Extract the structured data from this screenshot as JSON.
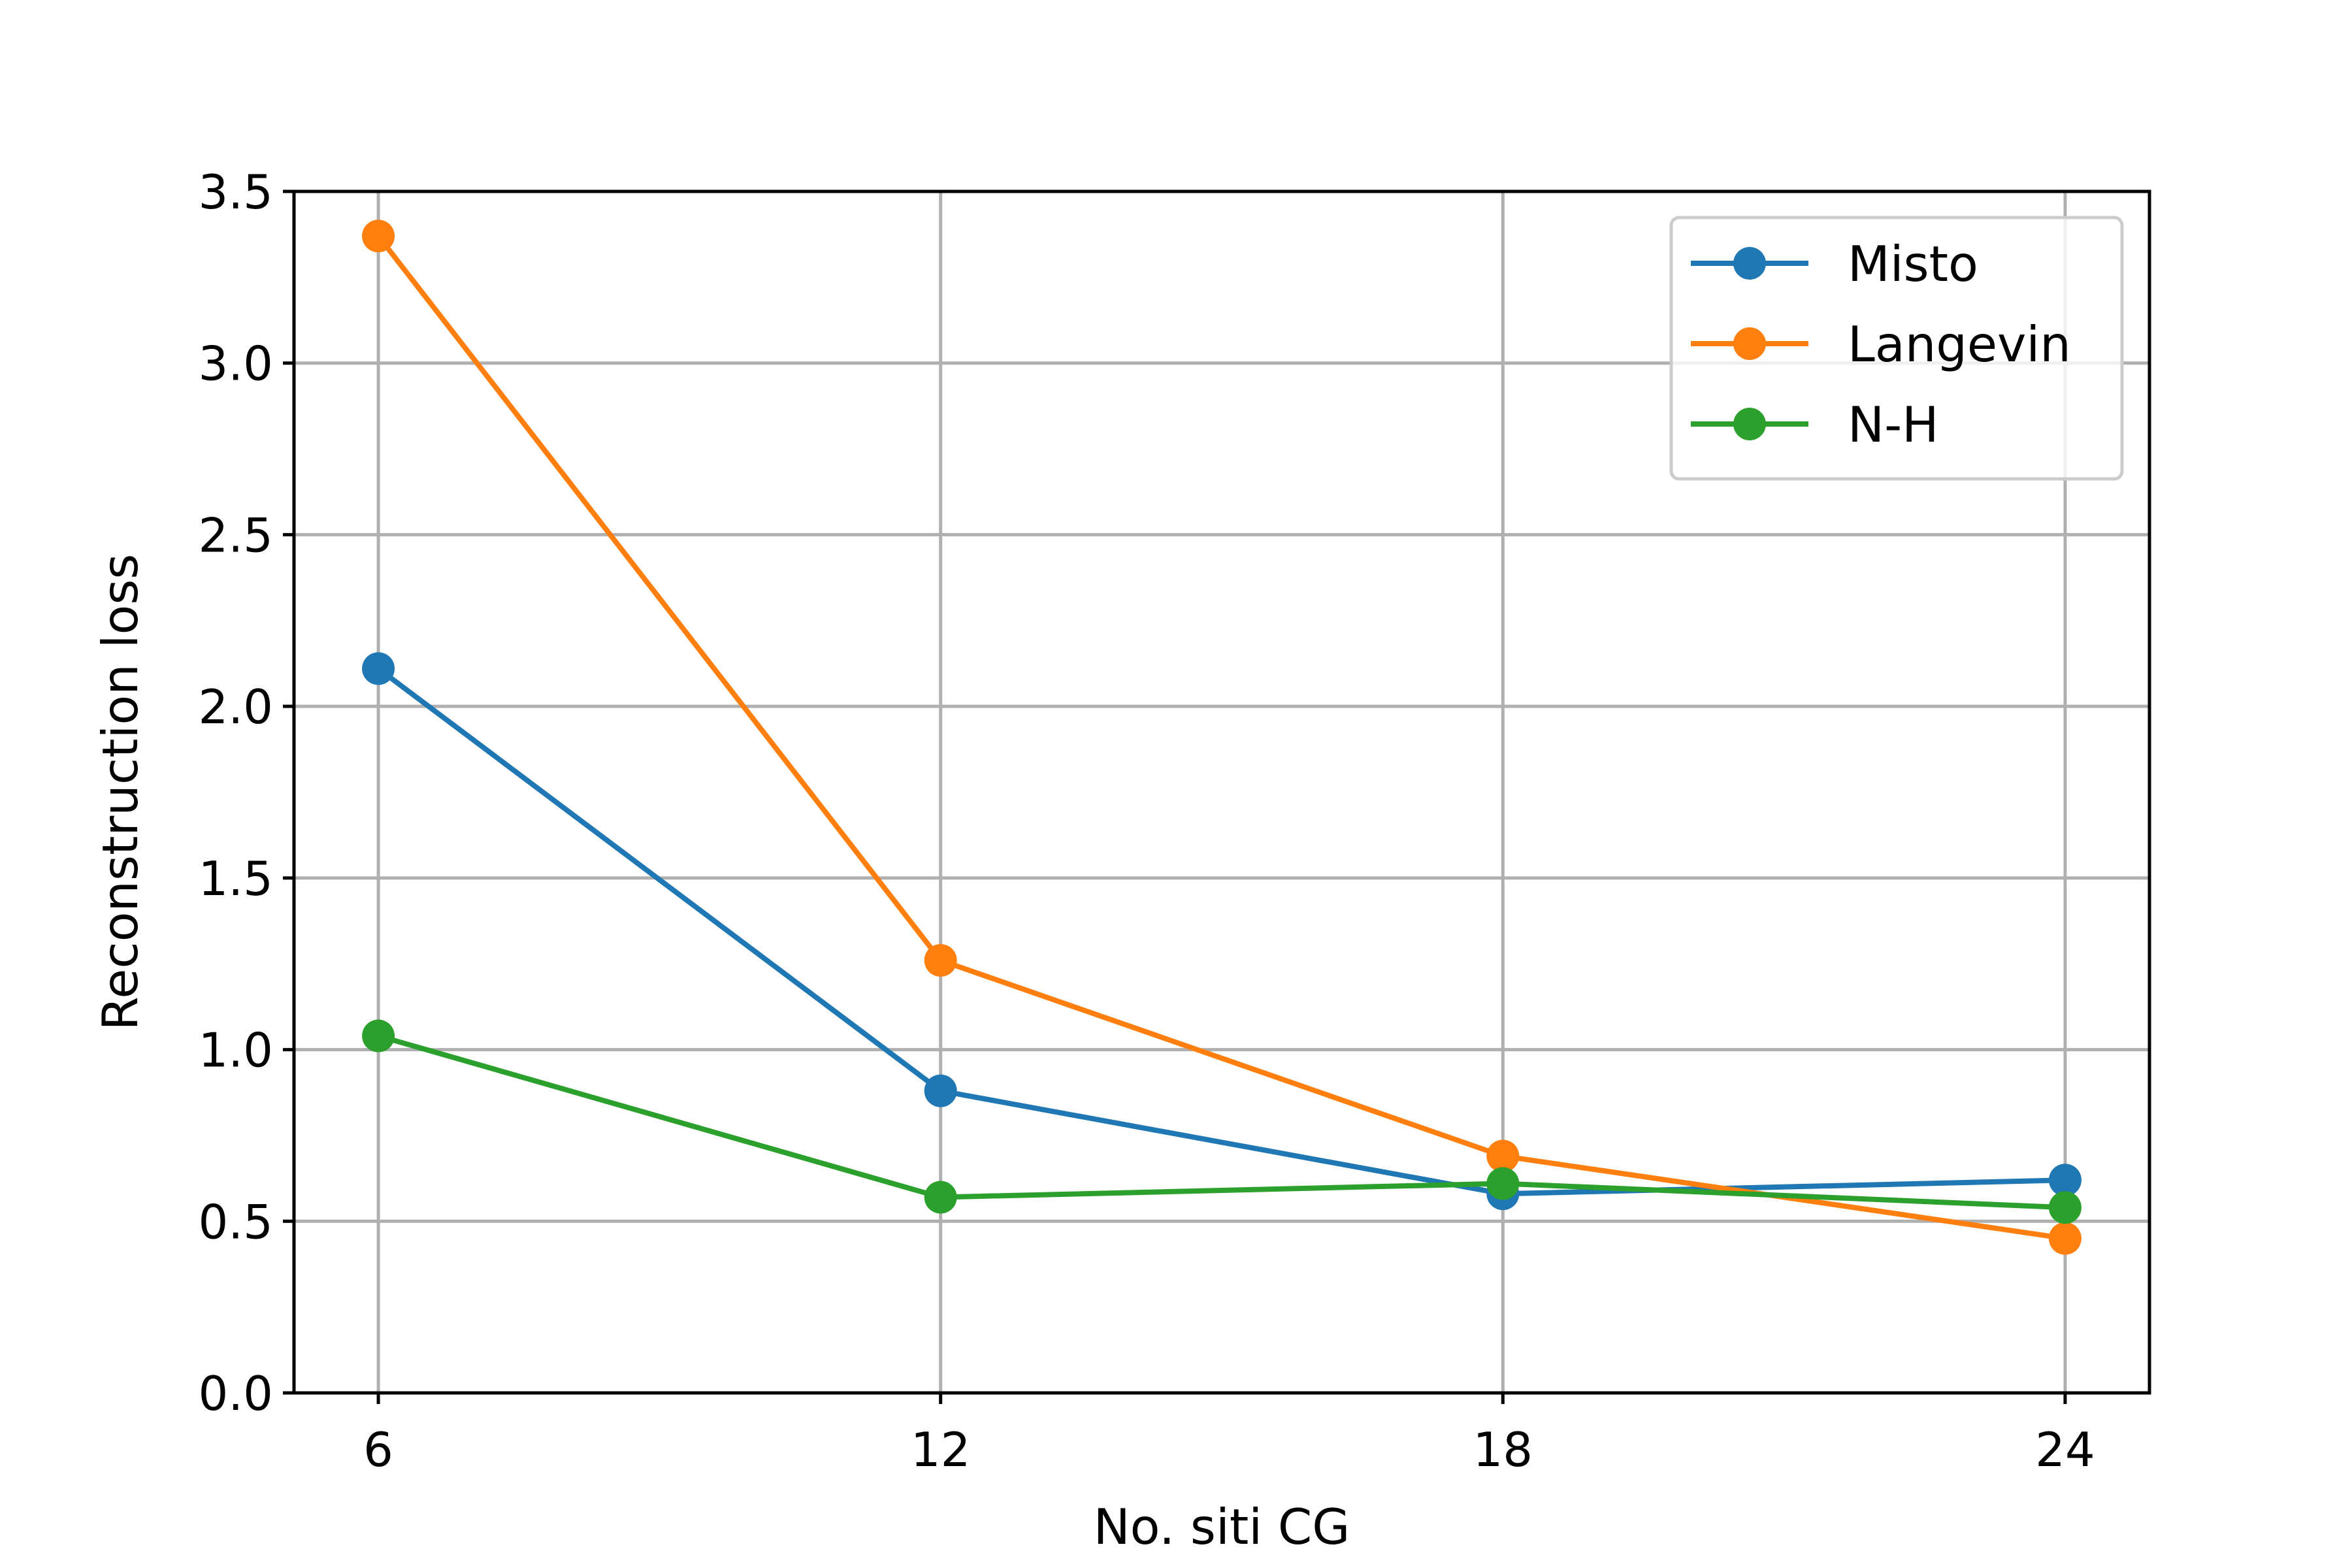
{
  "chart_data": {
    "type": "line",
    "title": "",
    "xlabel": "No. siti CG",
    "ylabel": "Reconstruction loss",
    "x": [
      6,
      12,
      18,
      24
    ],
    "xticks": [
      6,
      12,
      18,
      24
    ],
    "yticks": [
      0.0,
      0.5,
      1.0,
      1.5,
      2.0,
      2.5,
      3.0,
      3.5
    ],
    "ytick_labels": [
      "0.0",
      "0.5",
      "1.0",
      "1.5",
      "2.0",
      "2.5",
      "3.0",
      "3.5"
    ],
    "xlim": [
      5.1,
      24.9
    ],
    "ylim": [
      0,
      3.5
    ],
    "grid": true,
    "legend_position": "top-right",
    "series": [
      {
        "name": "Misto",
        "color": "#1f77b4",
        "values": [
          2.11,
          0.88,
          0.58,
          0.62
        ]
      },
      {
        "name": "Langevin",
        "color": "#ff7f0e",
        "values": [
          3.37,
          1.26,
          0.69,
          0.45
        ]
      },
      {
        "name": "N-H",
        "color": "#2ca02c",
        "values": [
          1.04,
          0.57,
          0.61,
          0.54
        ]
      }
    ]
  }
}
